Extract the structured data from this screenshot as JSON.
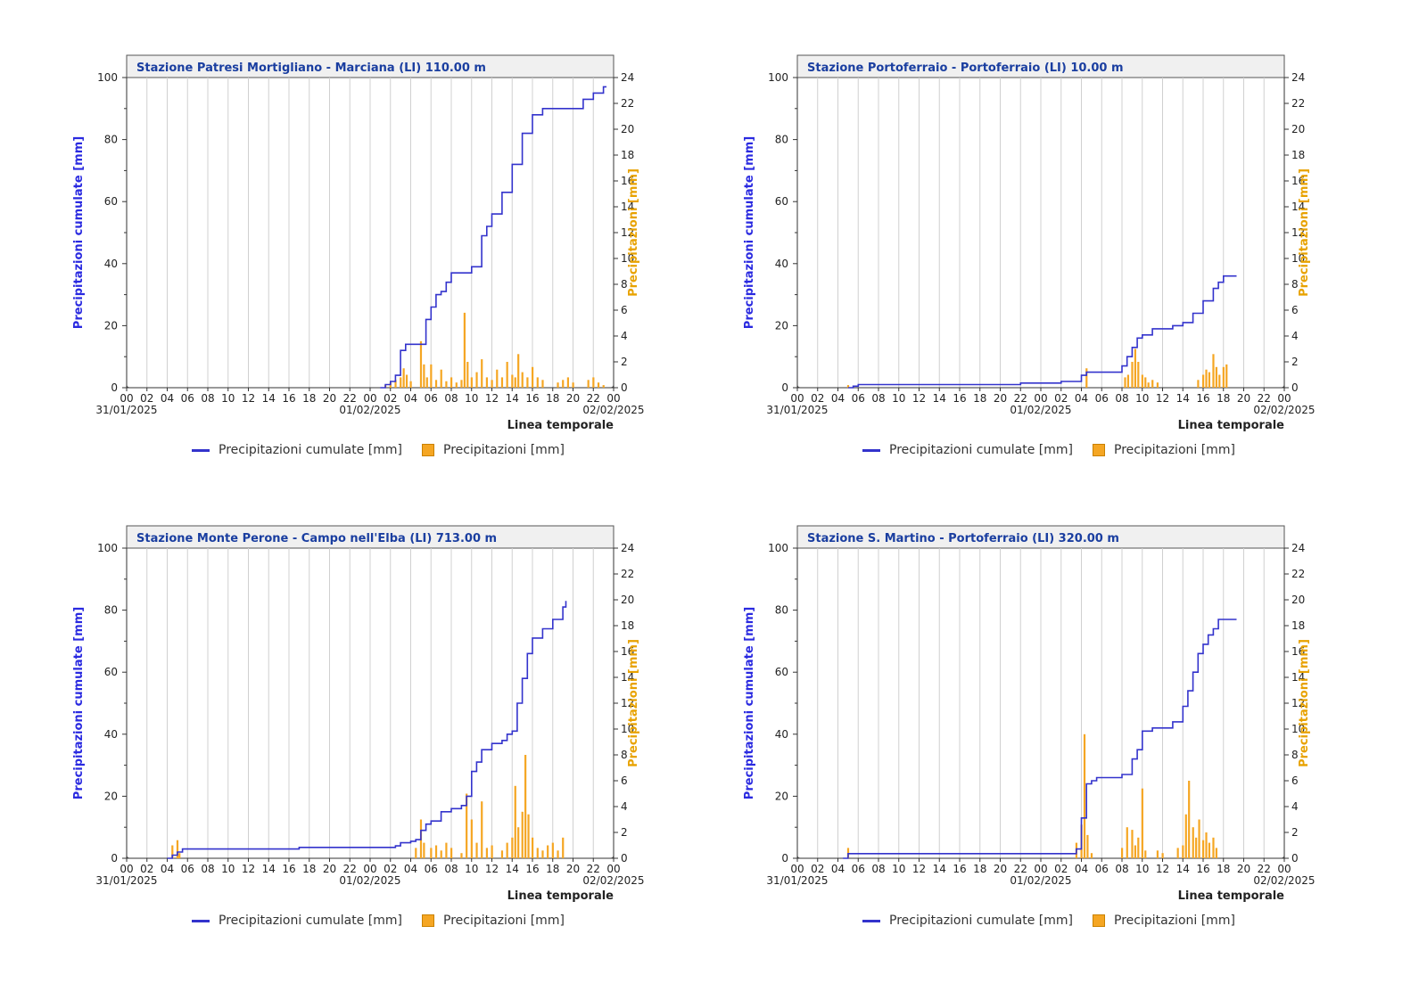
{
  "legend": {
    "cumulative": "Precipitazioni cumulate [mm]",
    "precip": "Precipitazioni [mm]"
  },
  "colors": {
    "cumulative": "#3333cc",
    "precip": "#f5a623",
    "title": "#1a3ea0",
    "axis_left": "#2a2ae0",
    "axis_right": "#e8a200"
  },
  "chart_data": [
    {
      "type": "line",
      "title": "Stazione Patresi Mortigliano - Marciana (LI) 110.00 m",
      "ylabel": "Precipitazioni cumulate [mm]",
      "y2label": "Precipitazioni [mm]",
      "xlabel": "Linea temporale",
      "ylim": [
        0,
        100
      ],
      "y2lim": [
        0,
        24
      ],
      "y_ticks": [
        "0",
        "20",
        "40",
        "60",
        "80",
        "100"
      ],
      "y2_ticks": [
        "0",
        "2",
        "4",
        "6",
        "8",
        "10",
        "12",
        "14",
        "16",
        "18",
        "20",
        "22",
        "24"
      ],
      "x_ticks": [
        "00",
        "02",
        "04",
        "06",
        "08",
        "10",
        "12",
        "14",
        "16",
        "18",
        "20",
        "22",
        "00",
        "02",
        "04",
        "06",
        "08",
        "10",
        "12",
        "14",
        "16",
        "18",
        "20",
        "22",
        "00"
      ],
      "date_labels": [
        {
          "hour": 0,
          "label": "31/01/2025"
        },
        {
          "hour": 24,
          "label": "01/02/2025"
        },
        {
          "hour": 48,
          "label": "02/02/2025"
        }
      ],
      "series": [
        {
          "name": "Precipitazioni cumulate [mm]",
          "kind": "line",
          "x": [
            25,
            25.5,
            26,
            26.5,
            27,
            27.5,
            29,
            29.5,
            30,
            30.5,
            31,
            31.5,
            32,
            33,
            34,
            35,
            35.5,
            36,
            37,
            38,
            39,
            40,
            41,
            42,
            42.5,
            43,
            43.5,
            45,
            46,
            47,
            47.3
          ],
          "y": [
            0,
            1,
            2,
            4,
            12,
            14,
            14,
            22,
            26,
            30,
            31,
            34,
            37,
            37,
            39,
            49,
            52,
            56,
            63,
            72,
            82,
            88,
            90,
            90,
            90,
            90,
            90,
            93,
            95,
            97,
            97
          ]
        },
        {
          "name": "Precipitazioni [mm]",
          "kind": "bar",
          "axis": "right",
          "x": [
            25.5,
            26,
            26.5,
            27,
            27.3,
            27.6,
            28,
            29,
            29.3,
            29.6,
            30,
            30.5,
            31,
            31.5,
            32,
            32.5,
            33,
            33.3,
            33.6,
            34,
            34.5,
            35,
            35.5,
            36,
            36.5,
            37,
            37.5,
            38,
            38.3,
            38.6,
            39,
            39.5,
            40,
            40.5,
            41,
            42.5,
            43,
            43.5,
            44,
            45.5,
            46,
            46.5,
            47
          ],
          "y": [
            0.2,
            0.4,
            0.6,
            0.8,
            1.5,
            1.0,
            0.5,
            3.6,
            1.8,
            0.8,
            1.8,
            0.6,
            1.4,
            0.5,
            0.8,
            0.4,
            0.6,
            5.8,
            2.0,
            0.8,
            1.2,
            2.2,
            0.8,
            0.6,
            1.4,
            0.8,
            2.0,
            1.0,
            0.8,
            2.6,
            1.2,
            0.8,
            1.6,
            0.8,
            0.6,
            0.4,
            0.6,
            0.8,
            0.4,
            0.6,
            0.8,
            0.4,
            0.2
          ]
        }
      ]
    },
    {
      "type": "line",
      "title": "Stazione Portoferraio - Portoferraio (LI) 10.00 m",
      "ylabel": "Precipitazioni cumulate [mm]",
      "y2label": "Precipitazioni [mm]",
      "xlabel": "Linea temporale",
      "ylim": [
        0,
        100
      ],
      "y2lim": [
        0,
        24
      ],
      "y_ticks": [
        "0",
        "20",
        "40",
        "60",
        "80",
        "100"
      ],
      "y2_ticks": [
        "0",
        "2",
        "4",
        "6",
        "8",
        "10",
        "12",
        "14",
        "16",
        "18",
        "20",
        "22",
        "24"
      ],
      "x_ticks": [
        "00",
        "02",
        "04",
        "06",
        "08",
        "10",
        "12",
        "14",
        "16",
        "18",
        "20",
        "22",
        "00",
        "02",
        "04",
        "06",
        "08",
        "10",
        "12",
        "14",
        "16",
        "18",
        "20",
        "22",
        "00"
      ],
      "date_labels": [
        {
          "hour": 0,
          "label": "31/01/2025"
        },
        {
          "hour": 24,
          "label": "01/02/2025"
        },
        {
          "hour": 48,
          "label": "02/02/2025"
        }
      ],
      "series": [
        {
          "name": "Precipitazioni cumulate [mm]",
          "kind": "line",
          "x": [
            5,
            5.5,
            6,
            10,
            20,
            22,
            24,
            26,
            28,
            28.5,
            29,
            31,
            32,
            32.5,
            33,
            33.5,
            34,
            35,
            36,
            36.5,
            37,
            38,
            39,
            40,
            41,
            41.5,
            42,
            43,
            43.3
          ],
          "y": [
            0,
            0.5,
            1,
            1,
            1,
            1.5,
            1.5,
            2,
            4,
            5,
            5,
            5,
            7,
            10,
            13,
            16,
            17,
            19,
            19,
            19,
            20,
            21,
            24,
            28,
            32,
            34,
            36,
            36,
            36
          ]
        },
        {
          "name": "Precipitazioni [mm]",
          "kind": "bar",
          "axis": "right",
          "x": [
            5,
            28.5,
            32.3,
            32.6,
            33,
            33.3,
            33.6,
            34,
            34.3,
            34.6,
            35,
            35.5,
            39.5,
            40,
            40.3,
            40.6,
            41,
            41.3,
            41.6,
            42,
            42.3
          ],
          "y": [
            0.2,
            1.5,
            0.8,
            1.0,
            2.0,
            3.0,
            2.0,
            1.0,
            0.8,
            0.4,
            0.6,
            0.4,
            0.6,
            1.0,
            1.4,
            1.2,
            2.6,
            1.6,
            1.0,
            1.6,
            1.8
          ]
        }
      ]
    },
    {
      "type": "line",
      "title": "Stazione Monte Perone - Campo nell'Elba (LI) 713.00 m",
      "ylabel": "Precipitazioni cumulate [mm]",
      "y2label": "Precipitazioni [mm]",
      "xlabel": "Linea temporale",
      "ylim": [
        0,
        100
      ],
      "y2lim": [
        0,
        24
      ],
      "y_ticks": [
        "0",
        "20",
        "40",
        "60",
        "80",
        "100"
      ],
      "y2_ticks": [
        "0",
        "2",
        "4",
        "6",
        "8",
        "10",
        "12",
        "14",
        "16",
        "18",
        "20",
        "22",
        "24"
      ],
      "x_ticks": [
        "00",
        "02",
        "04",
        "06",
        "08",
        "10",
        "12",
        "14",
        "16",
        "18",
        "20",
        "22",
        "00",
        "02",
        "04",
        "06",
        "08",
        "10",
        "12",
        "14",
        "16",
        "18",
        "20",
        "22",
        "00"
      ],
      "date_labels": [
        {
          "hour": 0,
          "label": "31/01/2025"
        },
        {
          "hour": 24,
          "label": "01/02/2025"
        },
        {
          "hour": 48,
          "label": "02/02/2025"
        }
      ],
      "series": [
        {
          "name": "Precipitazioni cumulate [mm]",
          "kind": "line",
          "x": [
            4,
            4.5,
            5,
            5.5,
            10,
            16,
            17,
            22,
            26,
            26.5,
            27,
            28,
            28.5,
            29,
            29.5,
            30,
            31,
            32,
            33,
            33.5,
            34,
            34.5,
            35,
            36,
            37,
            37.5,
            38,
            38.5,
            39,
            39.5,
            40,
            41,
            42,
            43,
            43.3
          ],
          "y": [
            0,
            1,
            2,
            3,
            3,
            3,
            3.5,
            3.5,
            3.5,
            4,
            5,
            5.5,
            6,
            9,
            11,
            12,
            15,
            16,
            17,
            20,
            28,
            31,
            35,
            37,
            38,
            40,
            41,
            50,
            58,
            66,
            71,
            74,
            77,
            81,
            83
          ]
        },
        {
          "name": "Precipitazioni [mm]",
          "kind": "bar",
          "axis": "right",
          "x": [
            4.5,
            5,
            5.2,
            28.5,
            29,
            29.3,
            30,
            30.5,
            31,
            31.5,
            32,
            33,
            33.5,
            34,
            34.5,
            35,
            35.5,
            36,
            37,
            37.5,
            38,
            38.3,
            38.6,
            39,
            39.3,
            39.6,
            40,
            40.5,
            41,
            41.5,
            42,
            42.5,
            43
          ],
          "y": [
            1.0,
            1.4,
            0.4,
            0.8,
            3.0,
            1.2,
            0.8,
            1.0,
            0.6,
            1.2,
            0.8,
            0.4,
            5.0,
            3.0,
            1.2,
            4.4,
            0.8,
            1.0,
            0.6,
            1.2,
            1.6,
            5.6,
            2.4,
            3.6,
            8.0,
            3.4,
            1.6,
            0.8,
            0.6,
            1.0,
            1.2,
            0.6,
            1.6
          ]
        }
      ]
    },
    {
      "type": "line",
      "title": "Stazione S. Martino - Portoferraio (LI) 320.00 m",
      "ylabel": "Precipitazioni cumulate [mm]",
      "y2label": "Precipitazioni [mm]",
      "xlabel": "Linea temporale",
      "ylim": [
        0,
        100
      ],
      "y2lim": [
        0,
        24
      ],
      "y_ticks": [
        "0",
        "20",
        "40",
        "60",
        "80",
        "100"
      ],
      "y2_ticks": [
        "0",
        "2",
        "4",
        "6",
        "8",
        "10",
        "12",
        "14",
        "16",
        "18",
        "20",
        "22",
        "24"
      ],
      "x_ticks": [
        "00",
        "02",
        "04",
        "06",
        "08",
        "10",
        "12",
        "14",
        "16",
        "18",
        "20",
        "22",
        "00",
        "02",
        "04",
        "06",
        "08",
        "10",
        "12",
        "14",
        "16",
        "18",
        "20",
        "22",
        "00"
      ],
      "date_labels": [
        {
          "hour": 0,
          "label": "31/01/2025"
        },
        {
          "hour": 24,
          "label": "01/02/2025"
        },
        {
          "hour": 48,
          "label": "02/02/2025"
        }
      ],
      "series": [
        {
          "name": "Precipitazioni cumulate [mm]",
          "kind": "line",
          "x": [
            4.5,
            5,
            10,
            20,
            27,
            27.5,
            28,
            28.5,
            29,
            29.5,
            30,
            31,
            32,
            33,
            33.5,
            34,
            35,
            36,
            37,
            38,
            38.5,
            39,
            39.5,
            40,
            40.5,
            41,
            41.5,
            42,
            43,
            43.3
          ],
          "y": [
            0,
            1.5,
            1.5,
            1.5,
            1.5,
            3,
            13,
            24,
            25,
            26,
            26,
            26,
            27,
            32,
            35,
            41,
            42,
            42,
            44,
            49,
            54,
            60,
            66,
            69,
            72,
            74,
            77,
            77,
            77,
            77
          ]
        },
        {
          "name": "Precipitazioni [mm]",
          "kind": "bar",
          "axis": "right",
          "x": [
            5,
            27.5,
            28,
            28.3,
            28.6,
            29,
            32,
            32.5,
            33,
            33.3,
            33.6,
            34,
            34.3,
            35.5,
            36,
            37.5,
            38,
            38.3,
            38.6,
            39,
            39.3,
            39.6,
            40,
            40.3,
            40.6,
            41,
            41.3
          ],
          "y": [
            0.8,
            1.2,
            2.6,
            9.6,
            1.8,
            0.4,
            0.8,
            2.4,
            2.2,
            1.0,
            1.6,
            5.4,
            0.6,
            0.6,
            0.4,
            0.8,
            1.0,
            3.4,
            6.0,
            2.4,
            1.6,
            3.0,
            1.4,
            2.0,
            1.2,
            1.6,
            0.8
          ]
        }
      ]
    }
  ]
}
